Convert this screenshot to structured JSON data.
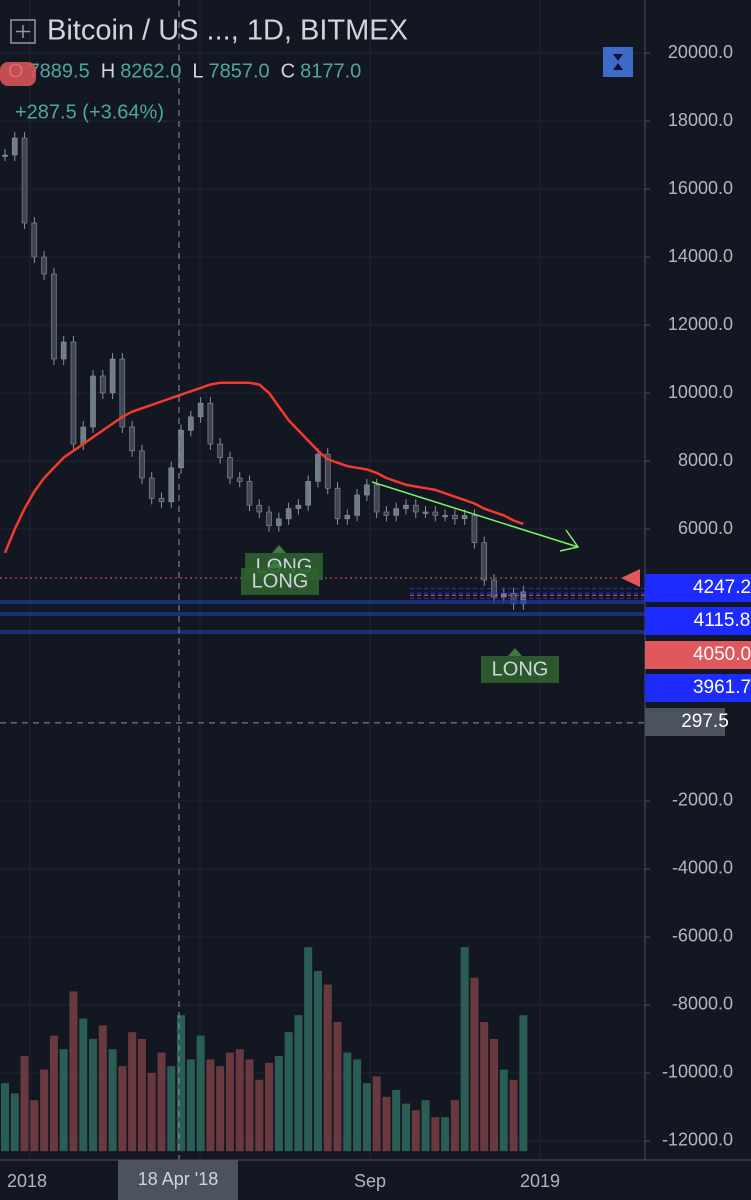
{
  "header": {
    "title": "Bitcoin / US ..., 1D, BITMEX",
    "ohlc": [
      {
        "key": "O",
        "value": "7889.5"
      },
      {
        "key": "H",
        "value": "8262.0"
      },
      {
        "key": "L",
        "value": "7857.0"
      },
      {
        "key": "C",
        "value": "8177.0"
      }
    ],
    "change": "+287.5 (+3.64%)"
  },
  "chart_data": {
    "type": "candlestick",
    "closes": [
      17000,
      17500,
      15000,
      14000,
      13500,
      11000,
      11500,
      8500,
      9000,
      10500,
      10000,
      11000,
      9000,
      8300,
      7500,
      6900,
      6800,
      7800,
      8900,
      9300,
      9700,
      8500,
      8100,
      7500,
      7400,
      6700,
      6500,
      6100,
      6300,
      6600,
      6700,
      7400,
      8200,
      7200,
      6300,
      6400,
      7000,
      7300,
      6500,
      6400,
      6600,
      6700,
      6500,
      6500,
      6400,
      6400,
      6300,
      6400,
      5600,
      4500,
      4000,
      4100,
      3800,
      4150
    ],
    "moving_average": [
      5300,
      6000,
      6600,
      7100,
      7500,
      7800,
      8100,
      8300,
      8500,
      8700,
      8900,
      9100,
      9300,
      9450,
      9550,
      9650,
      9750,
      9850,
      9950,
      10050,
      10150,
      10250,
      10300,
      10300,
      10300,
      10300,
      10250,
      10000,
      9600,
      9200,
      8900,
      8600,
      8300,
      8050,
      7950,
      7850,
      7800,
      7750,
      7650,
      7500,
      7400,
      7300,
      7250,
      7200,
      7150,
      7050,
      6950,
      6850,
      6750,
      6600,
      6500,
      6400,
      6250,
      6150
    ],
    "volume": [
      -10300,
      -10600,
      -9500,
      -10800,
      -9900,
      -8900,
      -9300,
      -7600,
      -8400,
      -9000,
      -8600,
      -9300,
      -9800,
      -8800,
      -9000,
      -10000,
      -9400,
      -9800,
      -8300,
      -9600,
      -8900,
      -9600,
      -9800,
      -9400,
      -9300,
      -9600,
      -10200,
      -9700,
      -9500,
      -8800,
      -8300,
      -6300,
      -7000,
      -7400,
      -8500,
      -9400,
      -9600,
      -10300,
      -10100,
      -10700,
      -10500,
      -10900,
      -11100,
      -10800,
      -11300,
      -11300,
      -10800,
      -6300,
      -7200,
      -8500,
      -9000,
      -9900,
      -10200,
      -8300
    ],
    "ylim": [
      -12559,
      21559
    ],
    "yticks": [
      {
        "value": 20000,
        "label": "20000.0"
      },
      {
        "value": 18000,
        "label": "18000.0"
      },
      {
        "value": 16000,
        "label": "16000.0"
      },
      {
        "value": 14000,
        "label": "14000.0"
      },
      {
        "value": 12000,
        "label": "12000.0"
      },
      {
        "value": 10000,
        "label": "10000.0"
      },
      {
        "value": 8000,
        "label": "8000.0"
      },
      {
        "value": 6000,
        "label": "6000.0"
      },
      {
        "value": -2000,
        "label": "-2000.0"
      },
      {
        "value": -4000,
        "label": "-4000.0"
      },
      {
        "value": -6000,
        "label": "-6000.0"
      },
      {
        "value": -8000,
        "label": "-8000.0"
      },
      {
        "value": -10000,
        "label": "-10000.0"
      },
      {
        "value": -12000,
        "label": "-12000.0"
      }
    ],
    "price_labels": [
      {
        "value": 4247.2,
        "label": "4247.2",
        "color": "#1e2bff"
      },
      {
        "value": 4115.8,
        "label": "4115.8",
        "color": "#1e2bff"
      },
      {
        "value": 4050,
        "label": "4050.0",
        "color": "#e0585b"
      },
      {
        "value": 3961.7,
        "label": "3961.7",
        "color": "#1e2bff"
      },
      {
        "value": 297.5,
        "label": "297.5",
        "color": "#4c525e"
      }
    ],
    "x_labels": [
      "2018",
      "Sep",
      "2019"
    ],
    "crosshair_x_label": "18 Apr '18",
    "annotations": [
      "LONG",
      "LONG",
      "LONG"
    ]
  }
}
